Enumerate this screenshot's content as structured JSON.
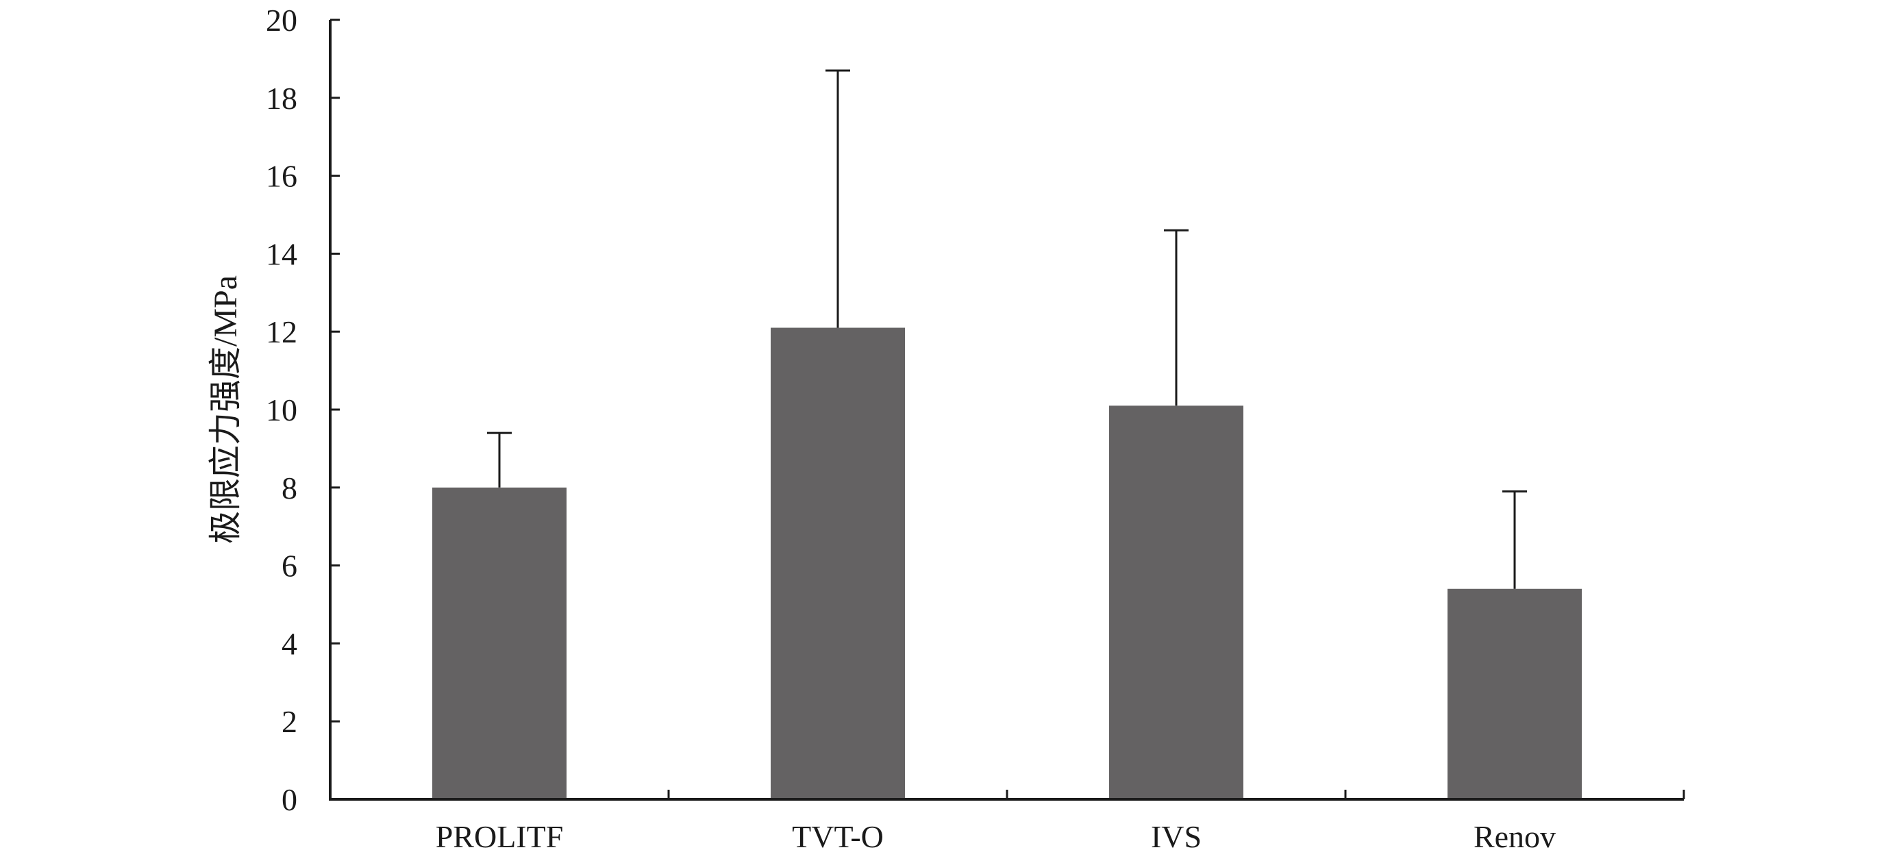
{
  "chart_data": {
    "type": "bar",
    "title": "",
    "xlabel": "",
    "ylabel": "极限应力强度/MPa",
    "categories": [
      "PROLITF",
      "TVT-O",
      "IVS",
      "Renov"
    ],
    "series": [
      {
        "values": [
          8.0,
          12.1,
          10.1,
          5.4
        ],
        "error_plus": [
          1.4,
          6.6,
          4.5,
          2.5
        ]
      }
    ],
    "ylim": [
      0,
      20
    ],
    "yticks": [
      0,
      2,
      4,
      6,
      8,
      10,
      12,
      14,
      16,
      18,
      20
    ],
    "grid": false,
    "legend": "none",
    "bar_color": "#646263",
    "axis_color": "#1a1a1a"
  }
}
